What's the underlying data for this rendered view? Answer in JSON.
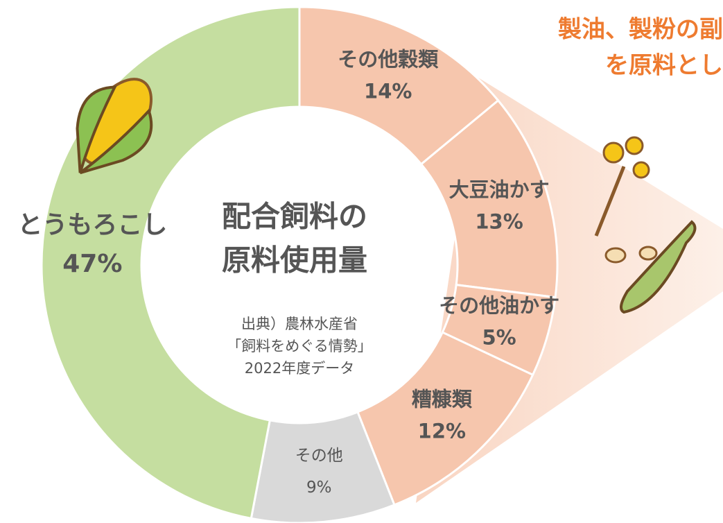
{
  "chart_data": {
    "type": "donut",
    "title": [
      "配合飼料の",
      "原料使用量"
    ],
    "source": [
      "出典）農林水産省",
      "「飼料をめぐる情勢」",
      "2022年度データ"
    ],
    "annotation": [
      "製油、製粉の副",
      "を原料とし"
    ],
    "categories": [
      "その他穀類",
      "大豆油かす",
      "その他油かす",
      "糟糠類",
      "その他",
      "とうもろこし"
    ],
    "values": [
      14,
      13,
      5,
      12,
      9,
      47
    ],
    "value_labels": [
      "14%",
      "13%",
      "5%",
      "12%",
      "9%",
      "47%"
    ],
    "colors": [
      "#f6c6ad",
      "#f6c6ad",
      "#f6c6ad",
      "#f6c6ad",
      "#d9d9d9",
      "#c5dea0"
    ]
  }
}
